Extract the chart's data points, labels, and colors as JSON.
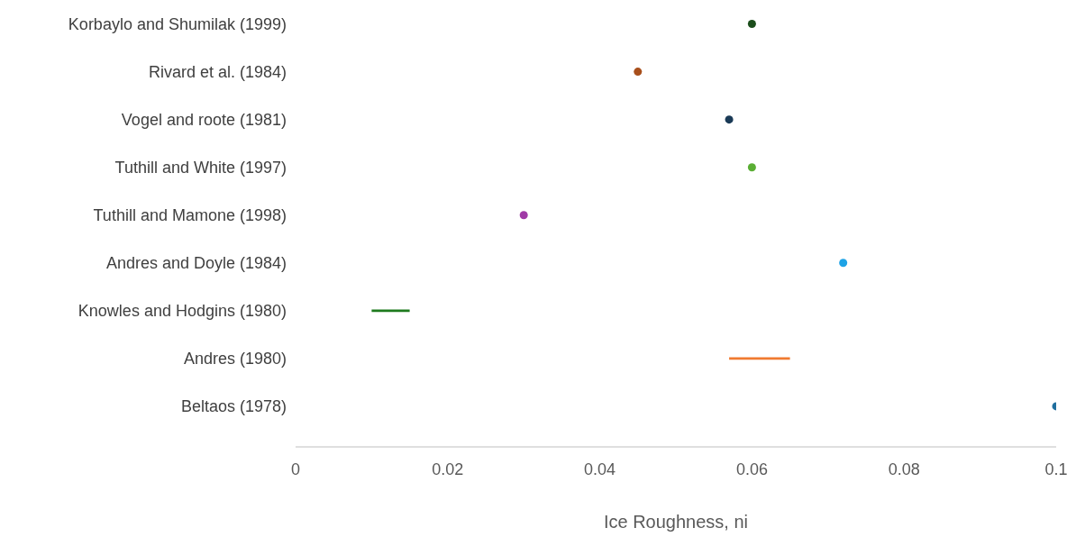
{
  "chart_data": {
    "type": "scatter",
    "orientation": "horizontal",
    "xlabel": "Ice Roughness, ni",
    "marker": "circle",
    "categories": [
      "Korbaylo and Shumilak (1999)",
      "Rivard et al. (1984)",
      "Vogel and roote (1981)",
      "Tuthill and White (1997)",
      "Tuthill and Mamone (1998)",
      "Andres and Doyle (1984)",
      "Knowles and Hodgins (1980)",
      "Andres (1980)",
      "Beltaos (1978)"
    ],
    "series": [
      {
        "values": [
          0.06,
          0.045,
          0.057,
          0.06,
          0.03,
          0.072,
          null,
          null,
          0.1
        ],
        "colors": [
          "#1b4d1b",
          "#a84f1c",
          "#1a3a56",
          "#5aae34",
          "#a03aa6",
          "#1ea3e6",
          null,
          null,
          "#1f6e9e"
        ]
      },
      {
        "type": "bar",
        "values": [
          null,
          null,
          null,
          null,
          null,
          null,
          0.005,
          0.008,
          null
        ],
        "base": [
          null,
          null,
          null,
          null,
          null,
          null,
          0.01,
          0.057,
          null
        ],
        "colors": [
          null,
          null,
          null,
          null,
          null,
          null,
          "#1e7a1e",
          "#f07a30",
          null
        ]
      }
    ],
    "xlim": [
      0,
      0.1
    ],
    "xticks": [
      0,
      0.02,
      0.04,
      0.06,
      0.08,
      0.1
    ]
  }
}
